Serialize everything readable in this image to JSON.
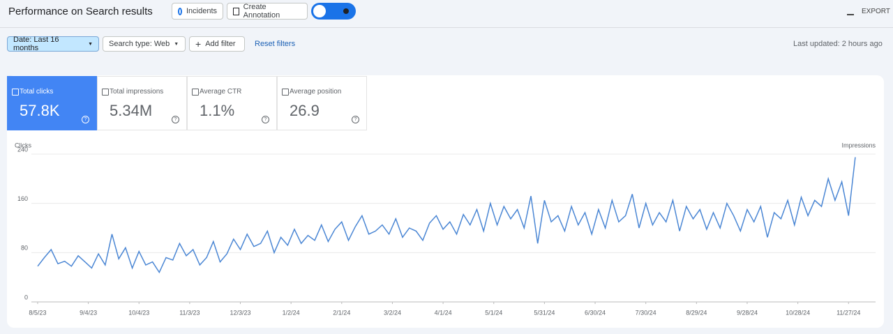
{
  "header": {
    "title": "Performance on Search results",
    "incidents": "Incidents",
    "annotation": "Create Annotation",
    "export": "EXPORT"
  },
  "filters": {
    "date": "Date: Last 16 months",
    "search_type": "Search type: Web",
    "add_filter": "Add filter",
    "reset": "Reset filters",
    "updated": "Last updated: 2 hours ago"
  },
  "metrics": [
    {
      "label": "Total clicks",
      "value": "57.8K"
    },
    {
      "label": "Total impressions",
      "value": "5.34M"
    },
    {
      "label": "Average CTR",
      "value": "1.1%"
    },
    {
      "label": "Average position",
      "value": "26.9"
    }
  ],
  "chart_data": {
    "type": "line",
    "y_label": "Clicks",
    "y2_label": "Impressions",
    "color": "#4a86d4",
    "grid": true,
    "x": [
      0,
      4,
      8,
      12,
      16,
      20,
      24,
      28,
      32,
      36,
      40,
      44,
      48,
      52,
      56,
      60,
      64,
      68,
      72,
      76,
      80,
      84,
      88,
      92,
      96,
      100,
      104,
      108,
      112,
      116,
      120,
      124,
      128,
      132,
      136,
      140,
      144,
      148,
      152,
      156,
      160,
      164,
      168,
      172,
      176,
      180,
      184,
      188,
      192,
      196,
      200,
      204,
      208,
      212,
      216,
      220,
      224,
      228,
      232,
      236,
      240,
      244,
      248,
      252,
      256,
      260,
      264,
      268,
      272,
      276,
      280,
      284,
      288,
      292,
      296,
      300,
      304,
      308,
      312,
      316,
      320,
      324,
      328,
      332,
      336,
      340,
      344,
      348,
      352,
      356,
      360,
      364,
      368,
      372,
      376,
      380,
      384,
      388,
      392,
      396,
      400,
      404,
      408,
      412,
      416,
      420,
      424,
      428,
      432,
      436,
      440,
      444,
      448,
      452,
      456,
      460,
      464,
      468,
      472,
      476,
      480,
      484
    ],
    "values": [
      58,
      72,
      85,
      62,
      66,
      58,
      75,
      65,
      55,
      78,
      60,
      110,
      70,
      88,
      55,
      82,
      60,
      65,
      48,
      72,
      68,
      95,
      75,
      85,
      60,
      72,
      98,
      65,
      78,
      102,
      85,
      110,
      90,
      95,
      115,
      80,
      105,
      92,
      118,
      95,
      108,
      100,
      125,
      98,
      118,
      130,
      100,
      122,
      140,
      110,
      115,
      125,
      110,
      135,
      105,
      120,
      115,
      100,
      128,
      140,
      118,
      130,
      110,
      142,
      125,
      150,
      115,
      160,
      125,
      155,
      135,
      150,
      120,
      172,
      95,
      165,
      130,
      140,
      115,
      155,
      125,
      145,
      110,
      150,
      120,
      165,
      130,
      140,
      175,
      120,
      160,
      125,
      145,
      130,
      165,
      115,
      155,
      135,
      150,
      118,
      145,
      120,
      160,
      140,
      115,
      150,
      130,
      155,
      105,
      145,
      135,
      165,
      125,
      170,
      140,
      165,
      155,
      200,
      165,
      195,
      140,
      235
    ],
    "xlim": [
      -7,
      496
    ],
    "ylim": [
      0,
      240
    ],
    "yticks": [
      0,
      80,
      160,
      240
    ],
    "xticks": [
      {
        "value": 0,
        "label": "8/5/23"
      },
      {
        "value": 30,
        "label": "9/4/23"
      },
      {
        "value": 60,
        "label": "10/4/23"
      },
      {
        "value": 90,
        "label": "11/3/23"
      },
      {
        "value": 120,
        "label": "12/3/23"
      },
      {
        "value": 150,
        "label": "1/2/24"
      },
      {
        "value": 180,
        "label": "2/1/24"
      },
      {
        "value": 210,
        "label": "3/2/24"
      },
      {
        "value": 240,
        "label": "4/1/24"
      },
      {
        "value": 270,
        "label": "5/1/24"
      },
      {
        "value": 300,
        "label": "5/31/24"
      },
      {
        "value": 330,
        "label": "6/30/24"
      },
      {
        "value": 360,
        "label": "7/30/24"
      },
      {
        "value": 390,
        "label": "8/29/24"
      },
      {
        "value": 420,
        "label": "9/28/24"
      },
      {
        "value": 450,
        "label": "10/28/24"
      },
      {
        "value": 480,
        "label": "11/27/24"
      }
    ]
  }
}
